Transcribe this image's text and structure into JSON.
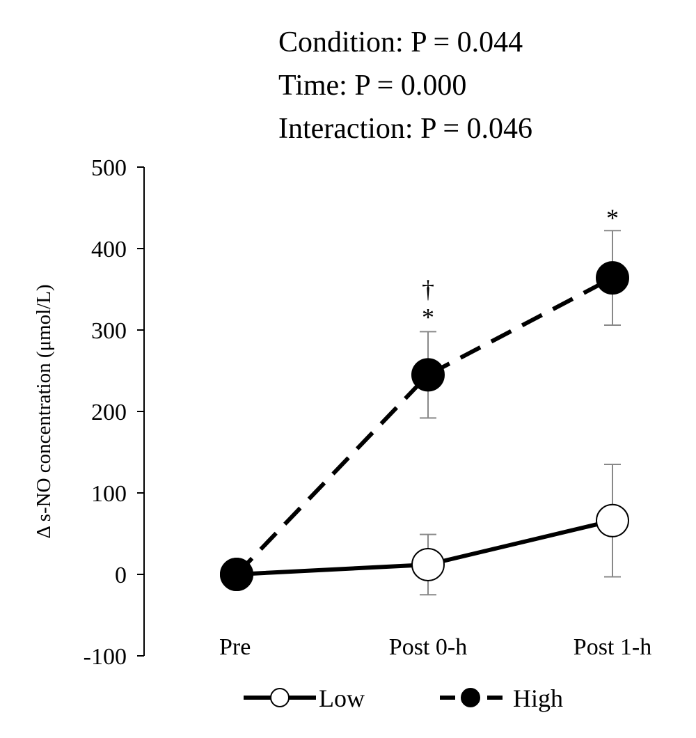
{
  "stats_annotation": {
    "lines": [
      "Condition: P = 0.044",
      "Time: P = 0.000",
      "Interaction: P = 0.046"
    ]
  },
  "chart_data": {
    "type": "line",
    "title": "",
    "xlabel": "",
    "ylabel": "Δ s-NO concentration (μmol/L)",
    "categories": [
      "Pre",
      "Post 0-h",
      "Post 1-h"
    ],
    "ylim": [
      -100,
      500
    ],
    "yticks": [
      "-100",
      "0",
      "100",
      "200",
      "300",
      "400",
      "500"
    ],
    "grid": false,
    "legend_position": "bottom",
    "series": [
      {
        "name": "Low",
        "values": [
          0,
          12,
          66
        ],
        "error": [
          null,
          37,
          69
        ],
        "line_style": "solid",
        "marker": "open-circle",
        "color": "#000000"
      },
      {
        "name": "High",
        "values": [
          0,
          245,
          364
        ],
        "error": [
          null,
          53,
          58
        ],
        "line_style": "dashed",
        "marker": "filled-circle",
        "color": "#000000"
      }
    ],
    "annotations": [
      {
        "category": "Post 0-h",
        "text": "†",
        "anchor_value": 297,
        "stack": 1
      },
      {
        "category": "Post 0-h",
        "text": "*",
        "anchor_value": 297,
        "stack": 0
      },
      {
        "category": "Post 1-h",
        "text": "*",
        "anchor_value": 419,
        "stack": 0
      }
    ]
  }
}
